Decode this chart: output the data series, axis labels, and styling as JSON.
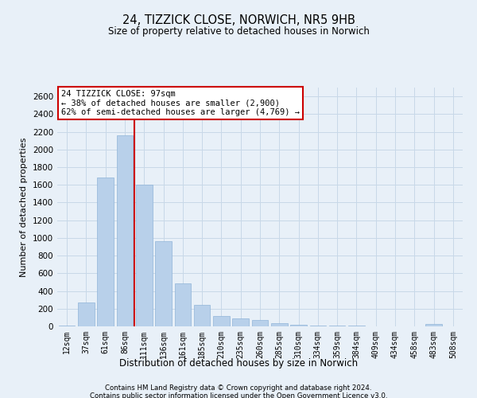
{
  "title1": "24, TIZZICK CLOSE, NORWICH, NR5 9HB",
  "title2": "Size of property relative to detached houses in Norwich",
  "xlabel": "Distribution of detached houses by size in Norwich",
  "ylabel": "Number of detached properties",
  "footer1": "Contains HM Land Registry data © Crown copyright and database right 2024.",
  "footer2": "Contains public sector information licensed under the Open Government Licence v3.0.",
  "annotation_title": "24 TIZZICK CLOSE: 97sqm",
  "annotation_line2": "← 38% of detached houses are smaller (2,900)",
  "annotation_line3": "62% of semi-detached houses are larger (4,769) →",
  "bar_labels": [
    "12sqm",
    "37sqm",
    "61sqm",
    "86sqm",
    "111sqm",
    "136sqm",
    "161sqm",
    "185sqm",
    "210sqm",
    "235sqm",
    "260sqm",
    "285sqm",
    "310sqm",
    "334sqm",
    "359sqm",
    "384sqm",
    "409sqm",
    "434sqm",
    "458sqm",
    "483sqm",
    "508sqm"
  ],
  "bar_values": [
    5,
    270,
    1680,
    2160,
    1600,
    960,
    490,
    240,
    120,
    90,
    75,
    35,
    15,
    10,
    8,
    5,
    2,
    1,
    1,
    30,
    2
  ],
  "bar_color": "#b8d0ea",
  "bar_edgecolor": "#90b4d8",
  "vline_color": "#cc0000",
  "vline_x_index": 3,
  "annotation_box_edgecolor": "#cc0000",
  "annotation_box_facecolor": "#ffffff",
  "grid_color": "#c8d8e8",
  "background_color": "#e8f0f8",
  "ylim": [
    0,
    2700
  ],
  "yticks": [
    0,
    200,
    400,
    600,
    800,
    1000,
    1200,
    1400,
    1600,
    1800,
    2000,
    2200,
    2400,
    2600
  ]
}
